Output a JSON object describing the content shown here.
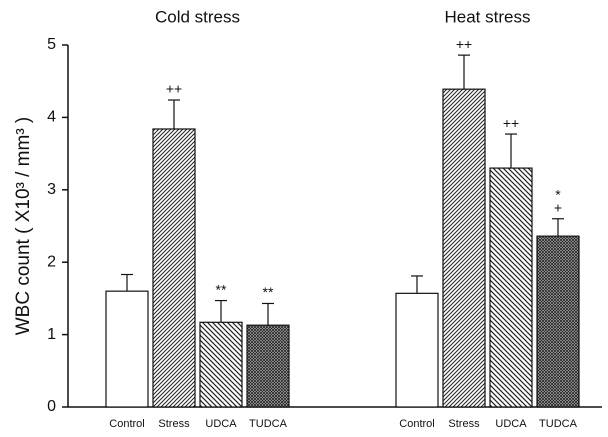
{
  "chart_data": [
    {
      "type": "bar",
      "title": "Cold stress",
      "ylabel": "WBC count ( X10³ / mm³ )",
      "categories": [
        "Control",
        "Stress",
        "UDCA",
        "TUDCA"
      ],
      "values": [
        1.6,
        3.84,
        1.17,
        1.13
      ],
      "errors": [
        0.23,
        0.4,
        0.3,
        0.3
      ],
      "annotations": [
        [],
        [
          "++"
        ],
        [
          "**"
        ],
        [
          "**"
        ]
      ],
      "patterns": [
        "none",
        "diagonal",
        "back-diagonal",
        "crosshatch"
      ],
      "ylim": [
        0,
        5
      ],
      "yticks": [
        0,
        1,
        2,
        3,
        4,
        5
      ]
    },
    {
      "type": "bar",
      "title": "Heat stress",
      "categories": [
        "Control",
        "Stress",
        "UDCA",
        "TUDCA"
      ],
      "values": [
        1.57,
        4.39,
        3.3,
        2.36
      ],
      "errors": [
        0.24,
        0.47,
        0.47,
        0.24
      ],
      "annotations": [
        [],
        [
          "++"
        ],
        [
          "++"
        ],
        [
          "+",
          "*"
        ]
      ],
      "patterns": [
        "none",
        "diagonal",
        "back-diagonal",
        "crosshatch"
      ],
      "ylim": [
        0,
        5
      ]
    }
  ]
}
